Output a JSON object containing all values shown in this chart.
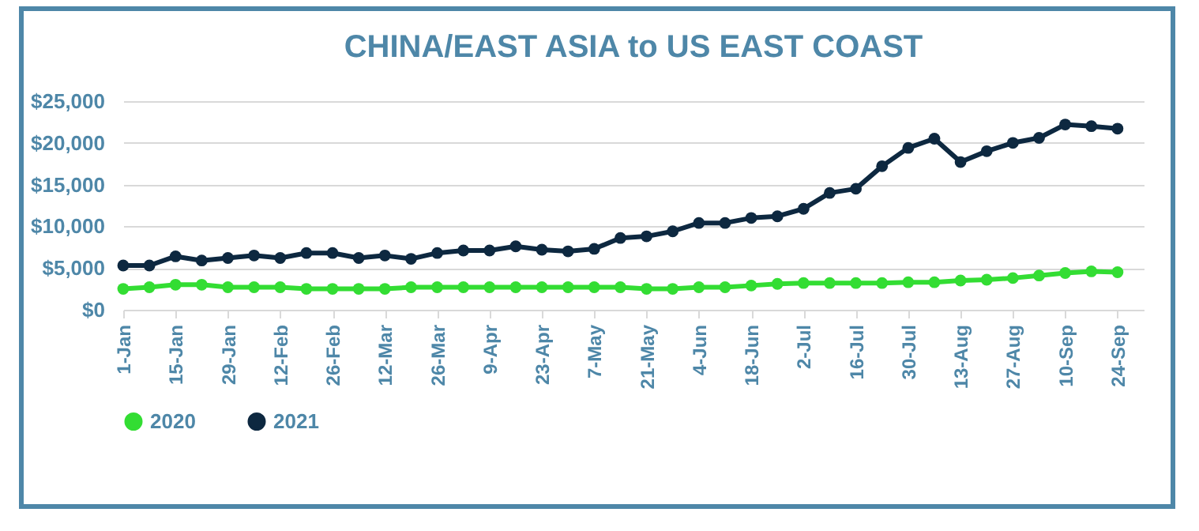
{
  "chart_data": {
    "type": "line",
    "title": "CHINA/EAST ASIA to US EAST COAST",
    "categories": [
      "1-Jan",
      null,
      "15-Jan",
      null,
      "29-Jan",
      null,
      "12-Feb",
      null,
      "26-Feb",
      null,
      "12-Mar",
      null,
      "26-Mar",
      null,
      "9-Apr",
      null,
      "23-Apr",
      null,
      "7-May",
      null,
      "21-May",
      null,
      "4-Jun",
      null,
      "18-Jun",
      null,
      "2-Jul",
      null,
      "16-Jul",
      null,
      "30-Jul",
      null,
      "13-Aug",
      null,
      "27-Aug",
      null,
      "10-Sep",
      null,
      "24-Sep"
    ],
    "series": [
      {
        "name": "2020",
        "color": "#33dd33",
        "values": [
          2500,
          2700,
          3000,
          3000,
          2700,
          2700,
          2700,
          2500,
          2500,
          2500,
          2500,
          2700,
          2700,
          2700,
          2700,
          2700,
          2700,
          2700,
          2700,
          2700,
          2500,
          2500,
          2700,
          2700,
          2900,
          3100,
          3200,
          3200,
          3200,
          3200,
          3300,
          3300,
          3500,
          3600,
          3800,
          4100,
          4400,
          4600,
          4500
        ]
      },
      {
        "name": "2021",
        "color": "#0d2840",
        "values": [
          5300,
          5300,
          6400,
          5900,
          6200,
          6500,
          6200,
          6800,
          6800,
          6200,
          6500,
          6100,
          6800,
          7100,
          7100,
          7600,
          7200,
          7000,
          7300,
          8600,
          8800,
          9400,
          10400,
          10400,
          11000,
          11200,
          12100,
          14000,
          14500,
          17200,
          19400,
          20500,
          17700,
          19000,
          20000,
          20600,
          22200,
          22000,
          21700
        ]
      }
    ],
    "ylim": [
      0,
      25000
    ],
    "yticks": [
      {
        "value": 0,
        "label": "$0"
      },
      {
        "value": 5000,
        "label": "$5,000"
      },
      {
        "value": 10000,
        "label": "$10,000"
      },
      {
        "value": 15000,
        "label": "$15,000"
      },
      {
        "value": 20000,
        "label": "$20,000"
      },
      {
        "value": 25000,
        "label": "$25,000"
      }
    ],
    "grid": "y",
    "legend": "bottom",
    "marker": "circle",
    "line_style": "solid"
  }
}
